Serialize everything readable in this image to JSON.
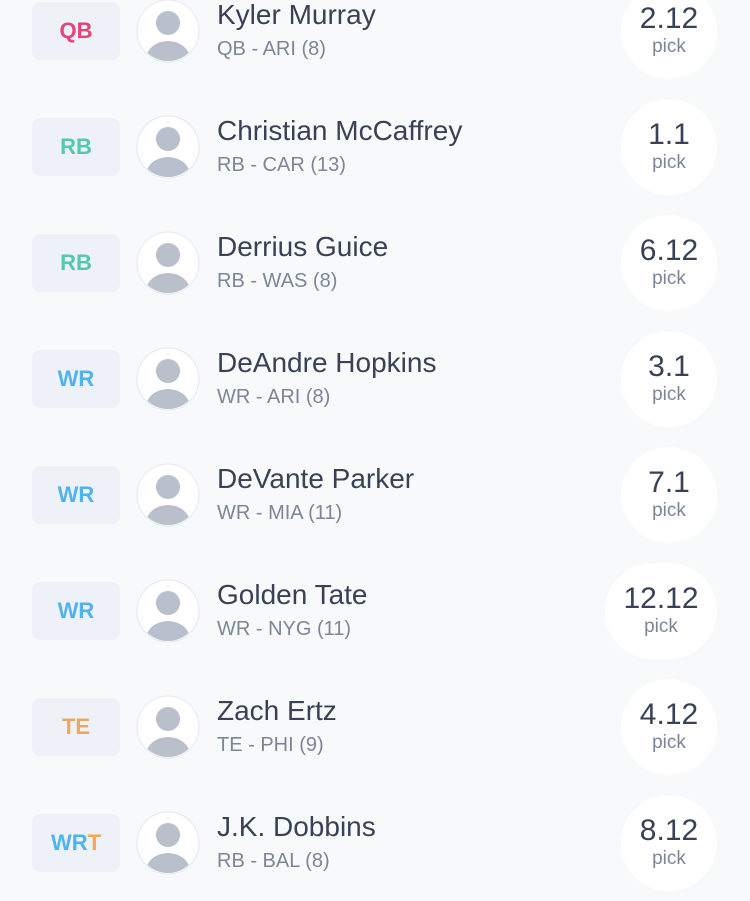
{
  "players": [
    {
      "badge": [
        {
          "text": "QB",
          "color": "#e2457a"
        }
      ],
      "name": "Kyler Murray",
      "detail": "QB - ARI (8)",
      "pick": "2.12"
    },
    {
      "badge": [
        {
          "text": "RB",
          "color": "#52c9b0"
        }
      ],
      "name": "Christian McCaffrey",
      "detail": "RB - CAR (13)",
      "pick": "1.1"
    },
    {
      "badge": [
        {
          "text": "RB",
          "color": "#52c9b0"
        }
      ],
      "name": "Derrius Guice",
      "detail": "RB - WAS (8)",
      "pick": "6.12"
    },
    {
      "badge": [
        {
          "text": "WR",
          "color": "#4fb3ee"
        }
      ],
      "name": "DeAndre Hopkins",
      "detail": "WR - ARI (8)",
      "pick": "3.1"
    },
    {
      "badge": [
        {
          "text": "WR",
          "color": "#4fb3ee"
        }
      ],
      "name": "DeVante Parker",
      "detail": "WR - MIA (11)",
      "pick": "7.1"
    },
    {
      "badge": [
        {
          "text": "WR",
          "color": "#4fb3ee"
        }
      ],
      "name": "Golden Tate",
      "detail": "WR - NYG (11)",
      "pick": "12.12"
    },
    {
      "badge": [
        {
          "text": "TE",
          "color": "#f3a55a"
        }
      ],
      "name": "Zach Ertz",
      "detail": "TE - PHI (9)",
      "pick": "4.12"
    },
    {
      "badge": [
        {
          "text": "WR",
          "color": "#4fb3ee"
        },
        {
          "text": "T",
          "color": "#f3a55a"
        }
      ],
      "name": "J.K. Dobbins",
      "detail": "RB - BAL (8)",
      "pick": "8.12"
    }
  ],
  "pick_label": "pick"
}
